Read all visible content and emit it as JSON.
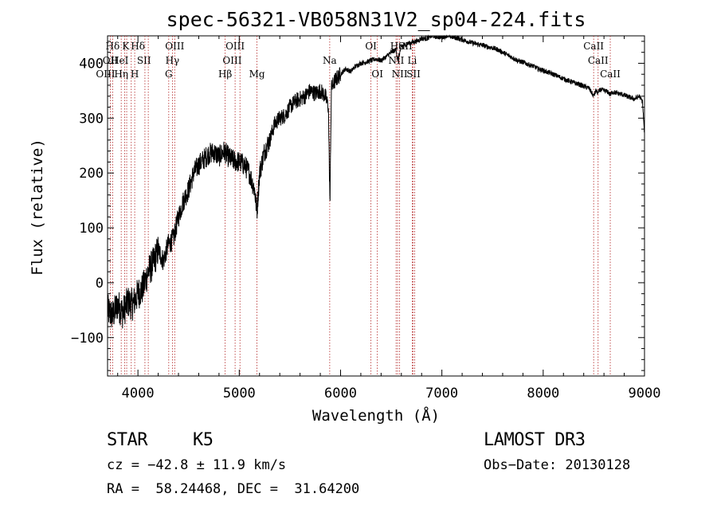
{
  "chart_data": {
    "type": "line",
    "title": "spec-56321-VB058N31V2_sp04-224.fits",
    "xlabel": "Wavelength (Å)",
    "ylabel": "Flux (relative)",
    "xlim": [
      3700,
      9000
    ],
    "ylim": [
      -170,
      450
    ],
    "x_ticks": [
      4000,
      5000,
      6000,
      7000,
      8000,
      9000
    ],
    "y_ticks": [
      -100,
      0,
      100,
      200,
      300,
      400
    ],
    "series": [
      {
        "name": "spectrum",
        "x": [
          3700,
          3750,
          3800,
          3850,
          3900,
          3950,
          4000,
          4050,
          4100,
          4150,
          4200,
          4250,
          4300,
          4350,
          4400,
          4450,
          4500,
          4550,
          4600,
          4650,
          4700,
          4750,
          4800,
          4850,
          4900,
          4950,
          5000,
          5050,
          5100,
          5150,
          5175,
          5200,
          5250,
          5300,
          5350,
          5400,
          5450,
          5500,
          5550,
          5600,
          5650,
          5700,
          5750,
          5800,
          5850,
          5880,
          5890,
          5896,
          5900,
          5910,
          5950,
          6000,
          6050,
          6100,
          6150,
          6200,
          6250,
          6300,
          6350,
          6400,
          6450,
          6500,
          6550,
          6563,
          6600,
          6650,
          6700,
          6750,
          6800,
          6850,
          6900,
          6950,
          7000,
          7050,
          7100,
          7150,
          7200,
          7250,
          7300,
          7350,
          7400,
          7450,
          7500,
          7550,
          7600,
          7650,
          7700,
          7750,
          7800,
          7850,
          7900,
          7950,
          8000,
          8050,
          8100,
          8150,
          8200,
          8250,
          8300,
          8350,
          8400,
          8450,
          8498,
          8520,
          8542,
          8560,
          8600,
          8640,
          8662,
          8680,
          8720,
          8760,
          8800,
          8850,
          8900,
          8950,
          8980,
          9000
        ],
        "values": [
          -50,
          -60,
          -40,
          -55,
          -35,
          -40,
          -20,
          -10,
          20,
          35,
          60,
          40,
          70,
          80,
          120,
          150,
          170,
          200,
          215,
          225,
          235,
          238,
          230,
          240,
          228,
          222,
          220,
          215,
          200,
          170,
          130,
          200,
          240,
          260,
          290,
          300,
          305,
          320,
          330,
          335,
          340,
          350,
          345,
          350,
          340,
          320,
          200,
          140,
          230,
          355,
          370,
          380,
          390,
          385,
          395,
          400,
          402,
          405,
          408,
          405,
          412,
          420,
          425,
          405,
          430,
          435,
          438,
          440,
          445,
          445,
          450,
          448,
          448,
          450,
          448,
          446,
          443,
          440,
          437,
          435,
          433,
          430,
          428,
          425,
          420,
          415,
          410,
          405,
          402,
          398,
          395,
          390,
          387,
          383,
          380,
          376,
          372,
          368,
          365,
          362,
          358,
          355,
          340,
          350,
          345,
          352,
          350,
          348,
          342,
          348,
          346,
          344,
          342,
          338,
          335,
          340,
          330,
          270
        ]
      }
    ],
    "annotations": [
      {
        "text": "Hδ",
        "x": 3750,
        "row": 1
      },
      {
        "text": "K",
        "x": 3880,
        "row": 1
      },
      {
        "text": "Hδ",
        "x": 4000,
        "row": 1
      },
      {
        "text": "OII",
        "x": 3727,
        "row": 2
      },
      {
        "text": "HeI",
        "x": 3820,
        "row": 2
      },
      {
        "text": "SII",
        "x": 4060,
        "row": 2
      },
      {
        "text": "OIII",
        "x": 3680,
        "row": 3
      },
      {
        "text": "Hη",
        "x": 3835,
        "row": 3
      },
      {
        "text": "H",
        "x": 3968,
        "row": 3
      },
      {
        "text": "OIII",
        "x": 4363,
        "row": 1
      },
      {
        "text": "Hγ",
        "x": 4340,
        "row": 2
      },
      {
        "text": "G",
        "x": 4304,
        "row": 3
      },
      {
        "text": "OIII",
        "x": 4959,
        "row": 1
      },
      {
        "text": "OIII",
        "x": 4930,
        "row": 2
      },
      {
        "text": "Hβ",
        "x": 4861,
        "row": 3
      },
      {
        "text": "Mg",
        "x": 5175,
        "row": 3
      },
      {
        "text": "Na",
        "x": 5893,
        "row": 2
      },
      {
        "text": "OI",
        "x": 6300,
        "row": 1
      },
      {
        "text": "OI",
        "x": 6363,
        "row": 3
      },
      {
        "text": "Hα",
        "x": 6563,
        "row": 1
      },
      {
        "text": "SII",
        "x": 6640,
        "row": 1
      },
      {
        "text": "NII",
        "x": 6550,
        "row": 2
      },
      {
        "text": "Li",
        "x": 6707,
        "row": 2
      },
      {
        "text": "NII",
        "x": 6583,
        "row": 3
      },
      {
        "text": "SII",
        "x": 6720,
        "row": 3
      },
      {
        "text": "CaII",
        "x": 8498,
        "row": 1
      },
      {
        "text": "CaII",
        "x": 8542,
        "row": 2
      },
      {
        "text": "CaII",
        "x": 8662,
        "row": 3
      }
    ],
    "line_markers": [
      3727,
      3750,
      3835,
      3869,
      3889,
      3934,
      3968,
      4069,
      4102,
      4304,
      4340,
      4363,
      4861,
      4959,
      5007,
      5175,
      5893,
      6300,
      6363,
      6548,
      6563,
      6583,
      6707,
      6716,
      6731,
      8498,
      8542,
      8662
    ]
  },
  "info": {
    "class_label": "STAR",
    "subclass": "K5",
    "survey": "LAMOST DR3",
    "cz": "cz = −42.8 ± 11.9 km/s",
    "obs_date": "Obs−Date: 20130128",
    "coords": "RA =  58.24468, DEC =  31.64200"
  },
  "colors": {
    "marker": "#b22222",
    "ink": "#000000"
  }
}
